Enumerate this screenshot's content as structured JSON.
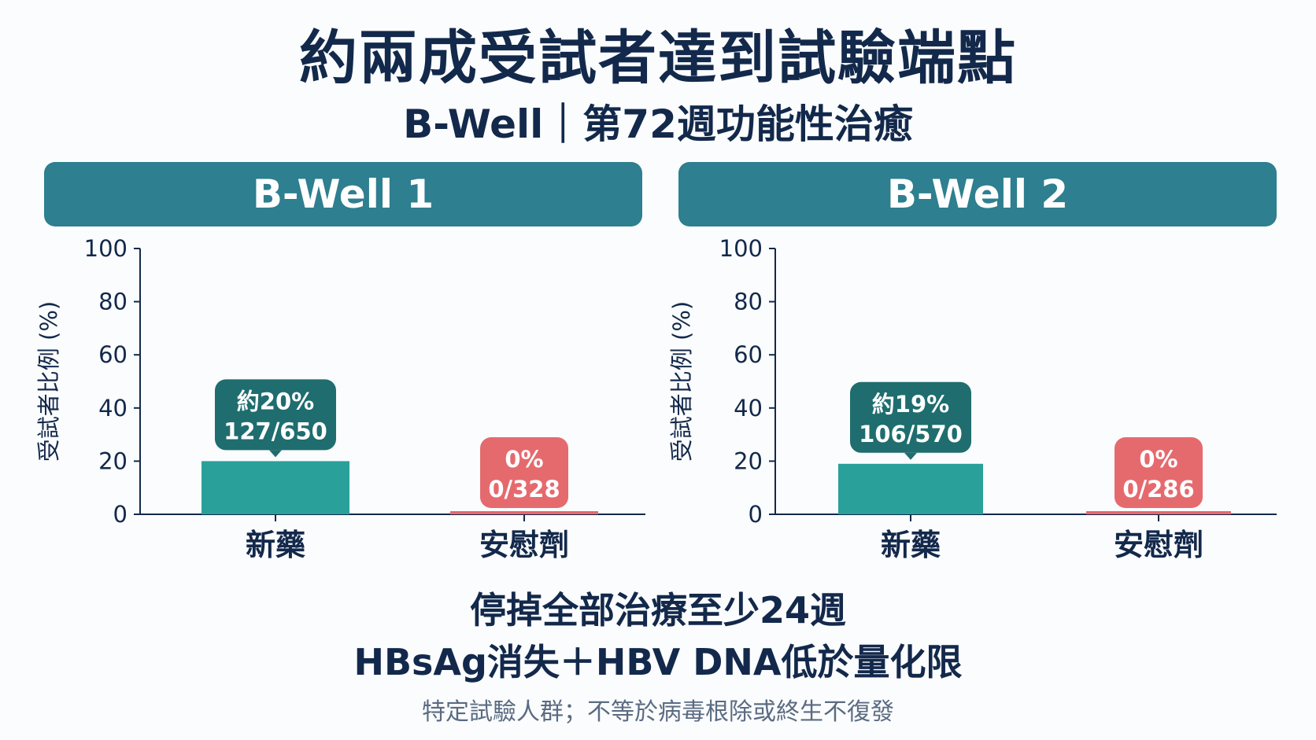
{
  "title": "約兩成受試者達到試驗端點",
  "subtitle": "B-Well｜第72週功能性治癒",
  "footer": {
    "line1": "停掉全部治療至少24週",
    "line2": "HBsAg消失＋HBV DNA低於量化限",
    "note": "特定試驗人群；不等於病毒根除或終生不復發"
  },
  "colors": {
    "header": "#2e7f8f",
    "drug_bar": "#2aa09b",
    "drug_label": "#1f6d6f",
    "placebo_bar": "#e8676d",
    "placebo_label": "#e56a6e",
    "text": "#13294b"
  },
  "chart_data": [
    {
      "type": "bar",
      "title": "B-Well 1",
      "ylabel": "受試者比例 (%)",
      "ylim": [
        0,
        100
      ],
      "yticks": [
        "0",
        "20",
        "40",
        "60",
        "80",
        "100"
      ],
      "categories": [
        "新藥",
        "安慰劑"
      ],
      "values": [
        20,
        0
      ],
      "annotations": [
        {
          "line1": "約20%",
          "line2": "127/650"
        },
        {
          "line1": "0%",
          "line2": "0/328"
        }
      ]
    },
    {
      "type": "bar",
      "title": "B-Well 2",
      "ylabel": "受試者比例 (%)",
      "ylim": [
        0,
        100
      ],
      "yticks": [
        "0",
        "20",
        "40",
        "60",
        "80",
        "100"
      ],
      "categories": [
        "新藥",
        "安慰劑"
      ],
      "values": [
        19,
        0
      ],
      "annotations": [
        {
          "line1": "約19%",
          "line2": "106/570"
        },
        {
          "line1": "0%",
          "line2": "0/286"
        }
      ]
    }
  ]
}
